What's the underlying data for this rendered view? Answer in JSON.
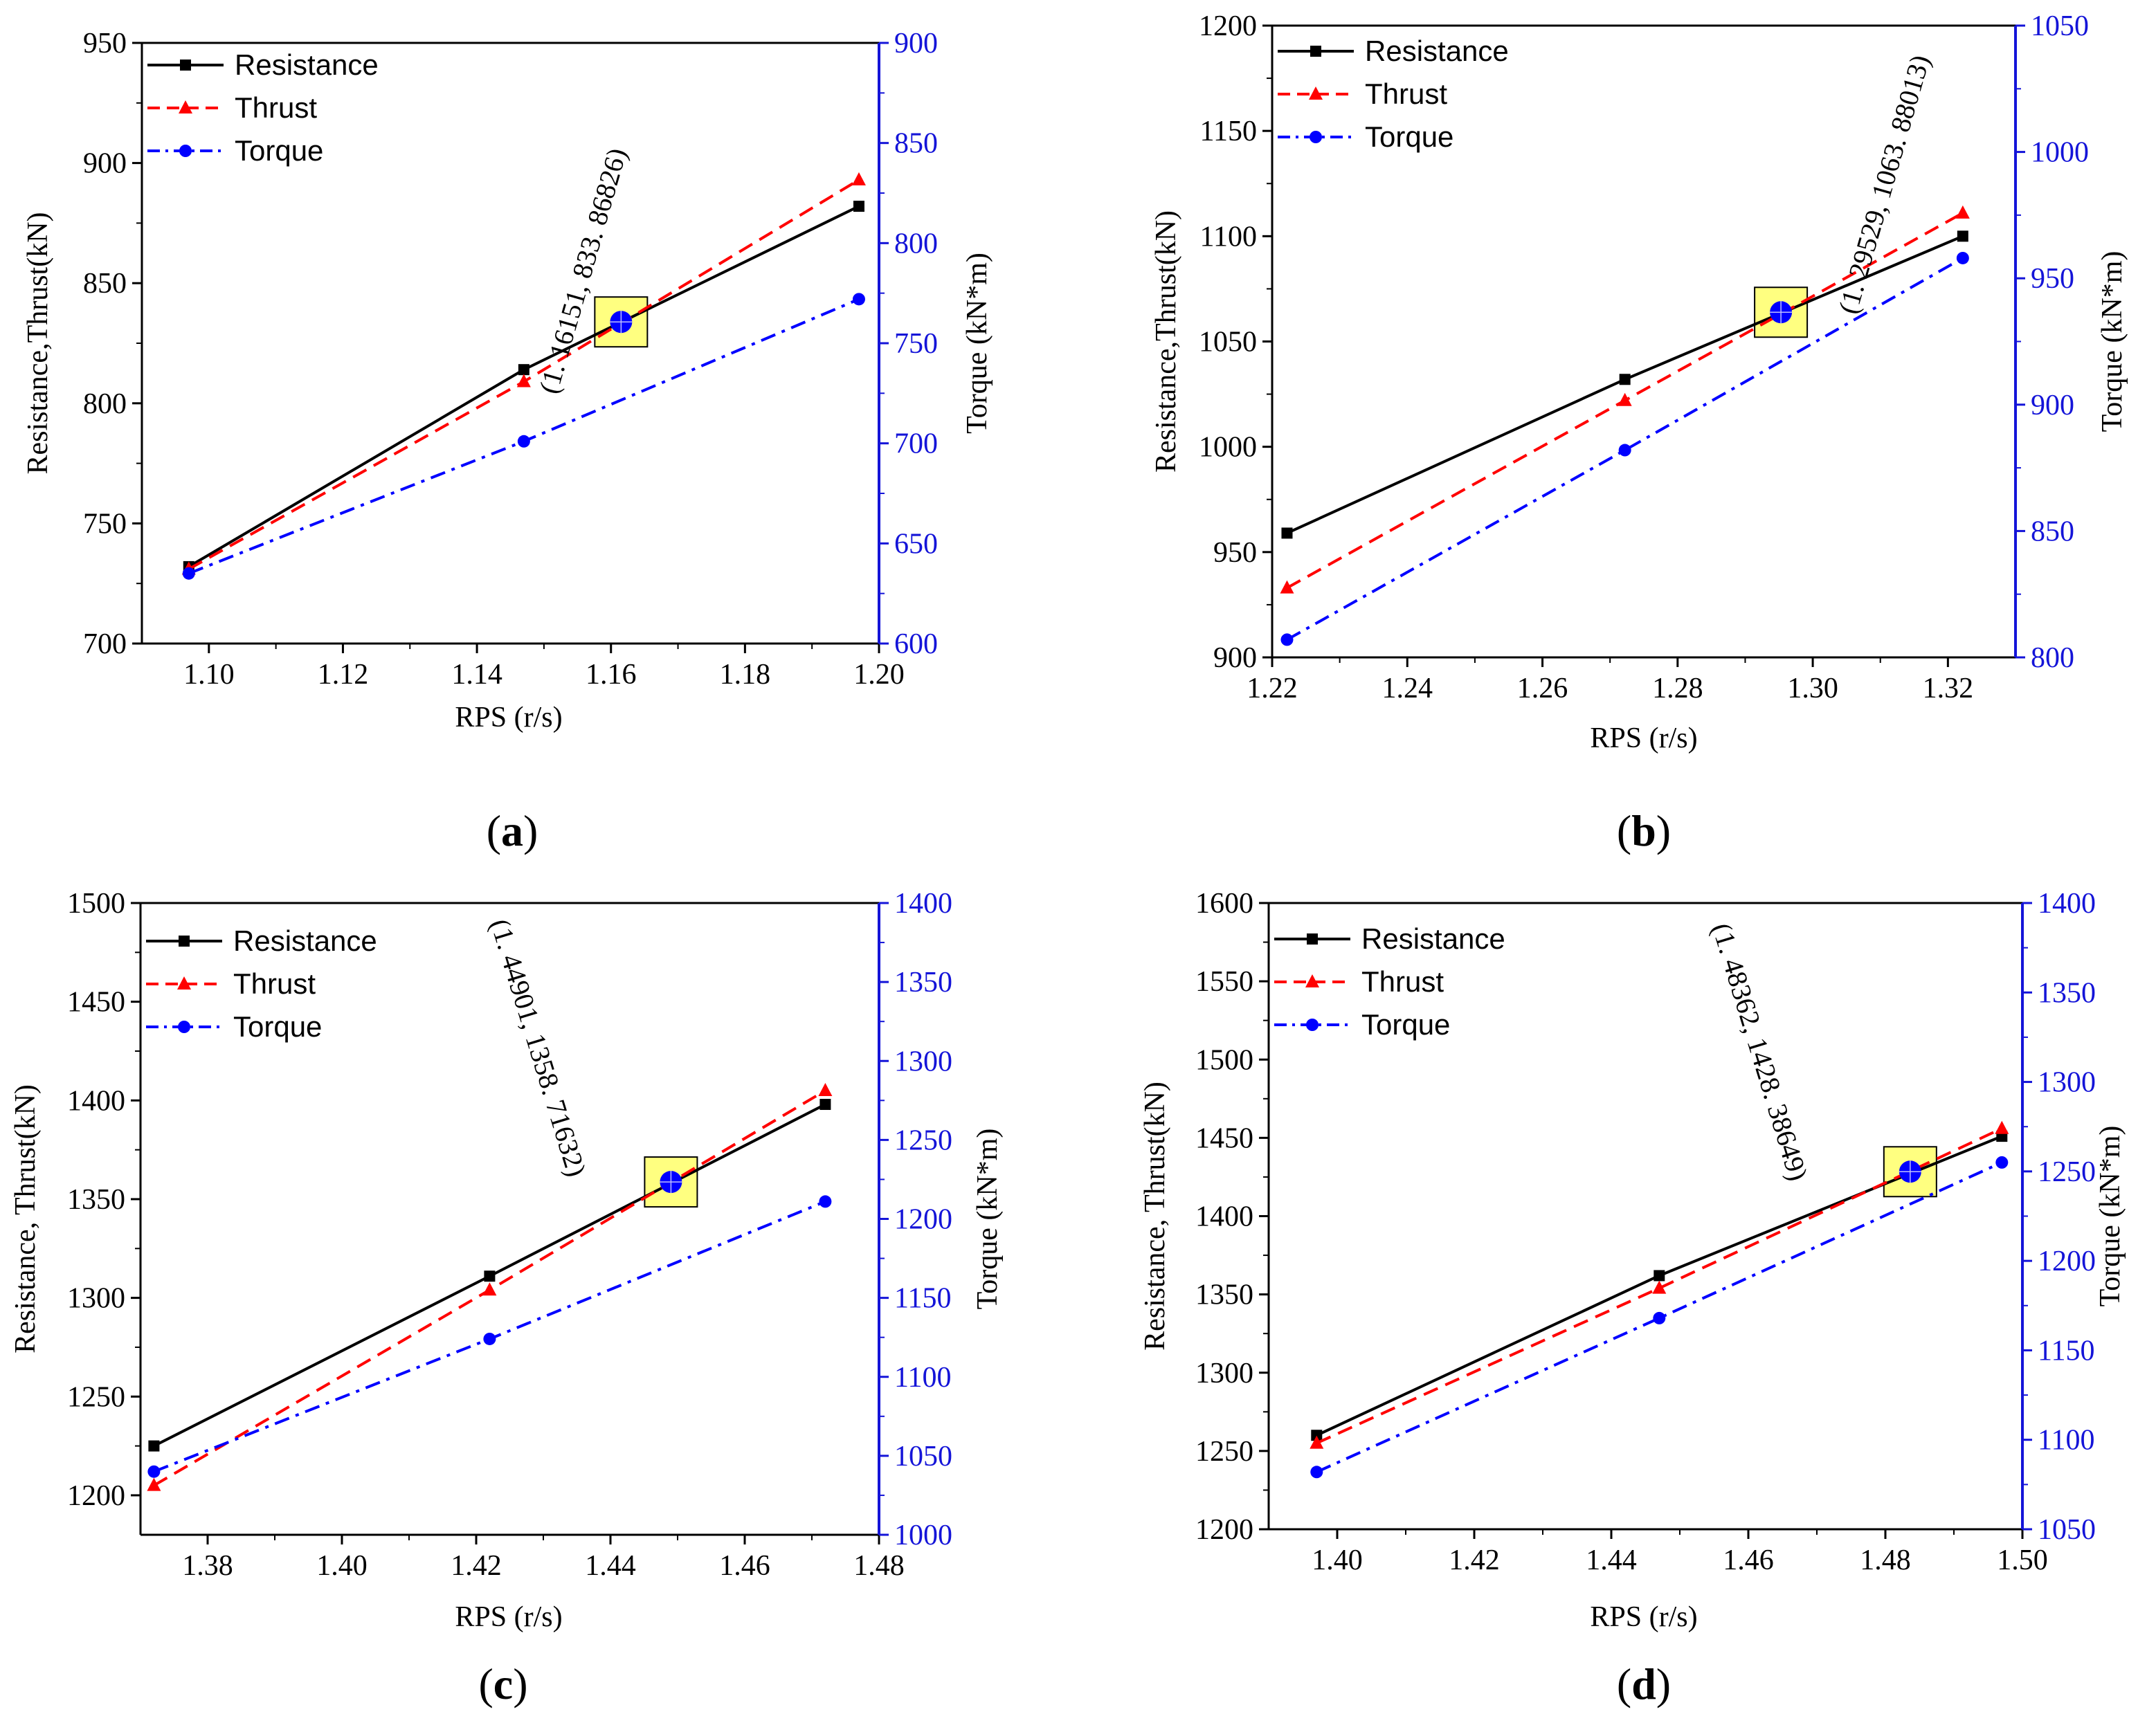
{
  "colors": {
    "resistance": "#000000",
    "thrust": "#ff0000",
    "torque": "#0000ff",
    "torque_axis": "#1414d8",
    "highlight": "#ffff80"
  },
  "legend_labels": {
    "resistance": "Resistance",
    "thrust": "Thrust",
    "torque": "Torque"
  },
  "chart_data": [
    {
      "id": "a",
      "panel_label": "a",
      "type": "line",
      "title": "",
      "xlabel": "RPS (r/s)",
      "ylabel": "Resistance,Thrust(kN)",
      "y2label": "Torque (kN*m)",
      "xlim": [
        1.09,
        1.2
      ],
      "ylim": [
        700,
        950
      ],
      "y2lim": [
        600,
        900
      ],
      "x_ticks": [
        1.1,
        1.12,
        1.14,
        1.16,
        1.18,
        1.2
      ],
      "x_tick_labels": [
        "1.10",
        "1.12",
        "1.14",
        "1.16",
        "1.18",
        "1.20"
      ],
      "y_ticks": [
        700,
        750,
        800,
        850,
        900,
        950
      ],
      "y_tick_labels": [
        "700",
        "750",
        "800",
        "850",
        "900",
        "950"
      ],
      "y2_ticks": [
        600,
        650,
        700,
        750,
        800,
        850,
        900
      ],
      "y2_tick_labels": [
        "600",
        "650",
        "700",
        "750",
        "800",
        "850",
        "900"
      ],
      "x": [
        1.097,
        1.147,
        1.197
      ],
      "series": [
        {
          "name": "Resistance",
          "axis": "left",
          "values": [
            732,
            814,
            882
          ]
        },
        {
          "name": "Thrust",
          "axis": "left",
          "values": [
            731,
            809,
            893
          ]
        },
        {
          "name": "Torque",
          "axis": "right",
          "values": [
            635,
            701,
            772
          ]
        }
      ],
      "intersection": {
        "x": 1.16151,
        "y": 833.86826,
        "label": "(1. 16151, 833. 86826)",
        "rotate": -74
      }
    },
    {
      "id": "b",
      "panel_label": "b",
      "type": "line",
      "title": "",
      "xlabel": "RPS (r/s)",
      "ylabel": "Resistance,Thrust(kN)",
      "y2label": "Torque (kN*m)",
      "xlim": [
        1.22,
        1.33
      ],
      "ylim": [
        900,
        1200
      ],
      "y2lim": [
        800,
        1050
      ],
      "x_ticks": [
        1.22,
        1.24,
        1.26,
        1.28,
        1.3,
        1.32
      ],
      "x_tick_labels": [
        "1.22",
        "1.24",
        "1.26",
        "1.28",
        "1.30",
        "1.32"
      ],
      "y_ticks": [
        900,
        950,
        1000,
        1050,
        1100,
        1150,
        1200
      ],
      "y_tick_labels": [
        "900",
        "950",
        "1000",
        "1050",
        "1100",
        "1150",
        "1200"
      ],
      "y2_ticks": [
        800,
        850,
        900,
        950,
        1000,
        1050
      ],
      "y2_tick_labels": [
        "800",
        "850",
        "900",
        "950",
        "1000",
        "1050"
      ],
      "x": [
        1.2222,
        1.2722,
        1.3222
      ],
      "series": [
        {
          "name": "Resistance",
          "axis": "left",
          "values": [
            959,
            1032,
            1100
          ]
        },
        {
          "name": "Thrust",
          "axis": "left",
          "values": [
            933,
            1022,
            1111
          ]
        },
        {
          "name": "Torque",
          "axis": "right",
          "values": [
            807,
            882,
            958
          ]
        }
      ],
      "intersection": {
        "x": 1.29529,
        "y": 1063.88013,
        "label": "(1. 29529, 1063. 88013)",
        "rotate": -74
      }
    },
    {
      "id": "c",
      "panel_label": "c",
      "type": "line",
      "title": "",
      "xlabel": "RPS (r/s)",
      "ylabel": "Resistance,   Thrust(kN)",
      "y2label": "Torque (kN*m)",
      "xlim": [
        1.37,
        1.48
      ],
      "ylim": [
        1180,
        1500
      ],
      "y2lim": [
        1000,
        1400
      ],
      "x_ticks": [
        1.38,
        1.4,
        1.42,
        1.44,
        1.46,
        1.48
      ],
      "x_tick_labels": [
        "1.38",
        "1.40",
        "1.42",
        "1.44",
        "1.46",
        "1.48"
      ],
      "y_ticks": [
        1200,
        1250,
        1300,
        1350,
        1400,
        1450,
        1500
      ],
      "y_tick_labels": [
        "1200",
        "1250",
        "1300",
        "1350",
        "1400",
        "1450",
        "1500"
      ],
      "y2_ticks": [
        1000,
        1050,
        1100,
        1150,
        1200,
        1250,
        1300,
        1350,
        1400
      ],
      "y2_tick_labels": [
        "1000",
        "1050",
        "1100",
        "1150",
        "1200",
        "1250",
        "1300",
        "1350",
        "1400"
      ],
      "x": [
        1.372,
        1.422,
        1.472
      ],
      "series": [
        {
          "name": "Resistance",
          "axis": "left",
          "values": [
            1225,
            1311,
            1398
          ]
        },
        {
          "name": "Thrust",
          "axis": "left",
          "values": [
            1205,
            1304,
            1405
          ]
        },
        {
          "name": "Torque",
          "axis": "right",
          "values": [
            1040,
            1124,
            1211
          ]
        }
      ],
      "intersection": {
        "x": 1.44901,
        "y": 1358.71632,
        "label": "(1. 44901, 1358. 71632)",
        "rotate": 73
      }
    },
    {
      "id": "d",
      "panel_label": "d",
      "type": "line",
      "title": "",
      "xlabel": "RPS (r/s)",
      "ylabel": "Resistance,   Thrust(kN)",
      "y2label": "Torque (kN*m)",
      "xlim": [
        1.39,
        1.5
      ],
      "ylim": [
        1200,
        1600
      ],
      "y2lim": [
        1050,
        1400
      ],
      "x_ticks": [
        1.4,
        1.42,
        1.44,
        1.46,
        1.48,
        1.5
      ],
      "x_tick_labels": [
        "1.40",
        "1.42",
        "1.44",
        "1.46",
        "1.48",
        "1.50"
      ],
      "y_ticks": [
        1200,
        1250,
        1300,
        1350,
        1400,
        1450,
        1500,
        1550,
        1600
      ],
      "y_tick_labels": [
        "1200",
        "1250",
        "1300",
        "1350",
        "1400",
        "1450",
        "1500",
        "1550",
        "1600"
      ],
      "y2_ticks": [
        1050,
        1100,
        1150,
        1200,
        1250,
        1300,
        1350,
        1400
      ],
      "y2_tick_labels": [
        "1050",
        "1100",
        "1150",
        "1200",
        "1250",
        "1300",
        "1350",
        "1400"
      ],
      "x": [
        1.397,
        1.447,
        1.497
      ],
      "series": [
        {
          "name": "Resistance",
          "axis": "left",
          "values": [
            1260,
            1362,
            1451
          ]
        },
        {
          "name": "Thrust",
          "axis": "left",
          "values": [
            1255,
            1354,
            1456
          ]
        },
        {
          "name": "Torque",
          "axis": "right",
          "values": [
            1082,
            1168,
            1255
          ]
        }
      ],
      "intersection": {
        "x": 1.48362,
        "y": 1428.38649,
        "label": "(1. 48362, 1428. 38649)",
        "rotate": 73
      }
    }
  ]
}
